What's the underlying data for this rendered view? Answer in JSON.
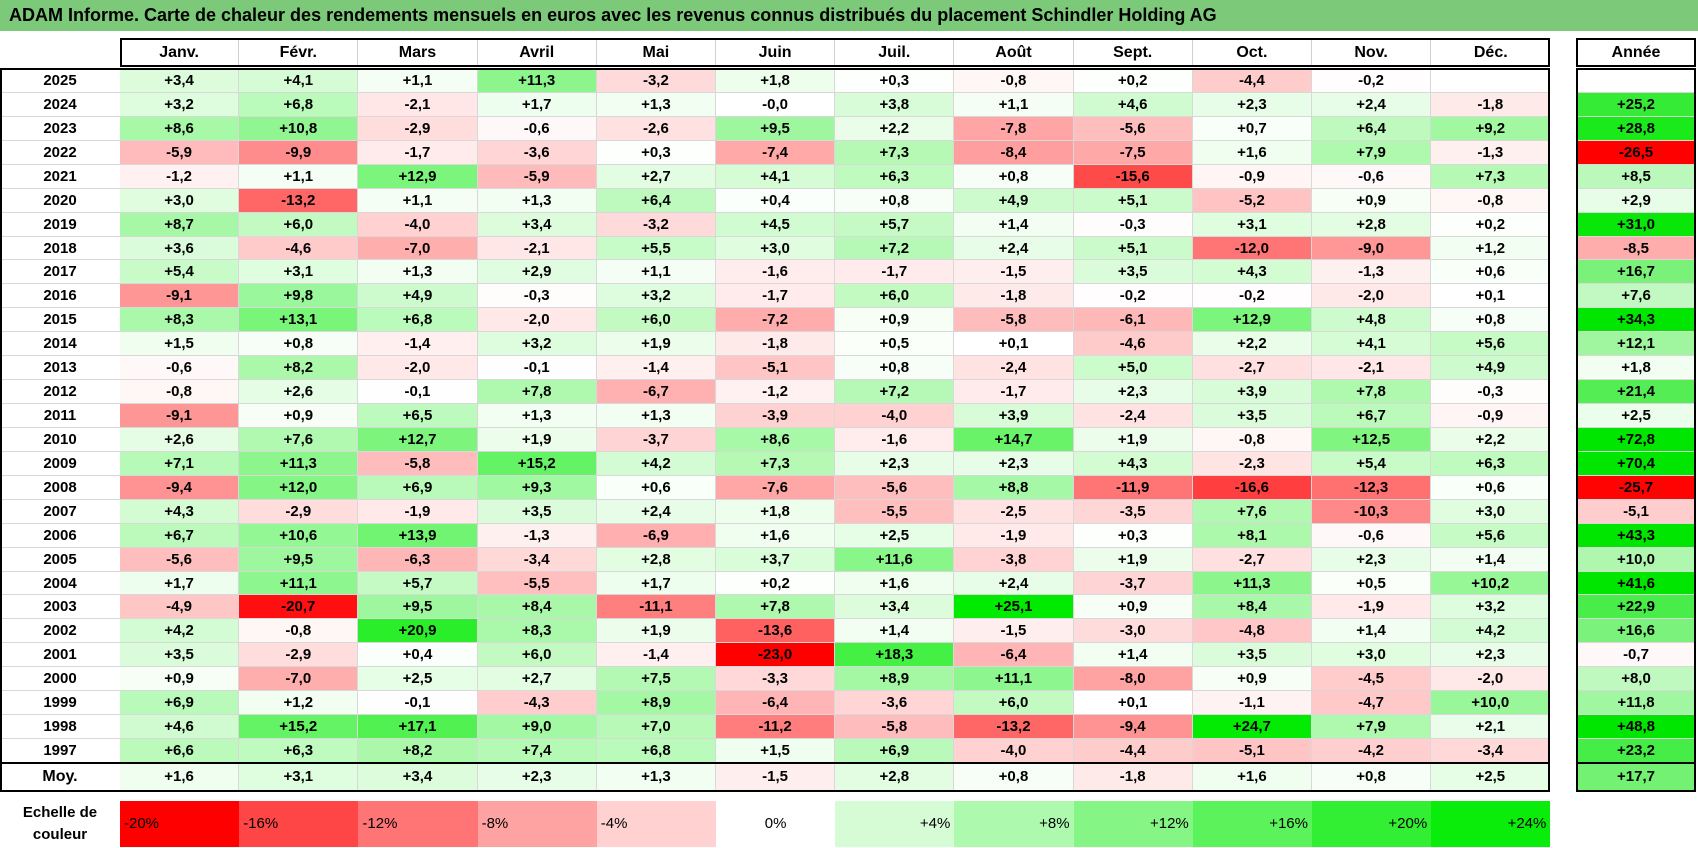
{
  "title": "ADAM Informe. Carte de chaleur des rendements mensuels en euros avec les revenus connus distribués du placement Schindler Holding AG",
  "colors": {
    "title_bg": "#7dc97a",
    "negative_max": "#ff0000",
    "positive_max": "#00e600",
    "neutral": "#ffffff"
  },
  "chart_data": {
    "type": "heatmap",
    "months": [
      "Janv.",
      "Févr.",
      "Mars",
      "Avril",
      "Mai",
      "Juin",
      "Juil.",
      "Août",
      "Sept.",
      "Oct.",
      "Nov.",
      "Déc."
    ],
    "year_header": "Année",
    "rows": [
      {
        "year": "2025",
        "values": [
          "+3,4",
          "+4,1",
          "+1,1",
          "+11,3",
          "-3,2",
          "+1,8",
          "+0,3",
          "-0,8",
          "+0,2",
          "-4,4",
          "-0,2",
          ""
        ],
        "annual": ""
      },
      {
        "year": "2024",
        "values": [
          "+3,2",
          "+6,8",
          "-2,1",
          "+1,7",
          "+1,3",
          "-0,0",
          "+3,8",
          "+1,1",
          "+4,6",
          "+2,3",
          "+2,4",
          "-1,8"
        ],
        "annual": "+25,2"
      },
      {
        "year": "2023",
        "values": [
          "+8,6",
          "+10,8",
          "-2,9",
          "-0,6",
          "-2,6",
          "+9,5",
          "+2,2",
          "-7,8",
          "-5,6",
          "+0,7",
          "+6,4",
          "+9,2"
        ],
        "annual": "+28,8"
      },
      {
        "year": "2022",
        "values": [
          "-5,9",
          "-9,9",
          "-1,7",
          "-3,6",
          "+0,3",
          "-7,4",
          "+7,3",
          "-8,4",
          "-7,5",
          "+1,6",
          "+7,9",
          "-1,3"
        ],
        "annual": "-26,5"
      },
      {
        "year": "2021",
        "values": [
          "-1,2",
          "+1,1",
          "+12,9",
          "-5,9",
          "+2,7",
          "+4,1",
          "+6,3",
          "+0,8",
          "-15,6",
          "-0,9",
          "-0,6",
          "+7,3"
        ],
        "annual": "+8,5"
      },
      {
        "year": "2020",
        "values": [
          "+3,0",
          "-13,2",
          "+1,1",
          "+1,3",
          "+6,4",
          "+0,4",
          "+0,8",
          "+4,9",
          "+5,1",
          "-5,2",
          "+0,9",
          "-0,8"
        ],
        "annual": "+2,9"
      },
      {
        "year": "2019",
        "values": [
          "+8,7",
          "+6,0",
          "-4,0",
          "+3,4",
          "-3,2",
          "+4,5",
          "+5,7",
          "+1,4",
          "-0,3",
          "+3,1",
          "+2,8",
          "+0,2"
        ],
        "annual": "+31,0"
      },
      {
        "year": "2018",
        "values": [
          "+3,6",
          "-4,6",
          "-7,0",
          "-2,1",
          "+5,5",
          "+3,0",
          "+7,2",
          "+2,4",
          "+5,1",
          "-12,0",
          "-9,0",
          "+1,2"
        ],
        "annual": "-8,5"
      },
      {
        "year": "2017",
        "values": [
          "+5,4",
          "+3,1",
          "+1,3",
          "+2,9",
          "+1,1",
          "-1,6",
          "-1,7",
          "-1,5",
          "+3,5",
          "+4,3",
          "-1,3",
          "+0,6"
        ],
        "annual": "+16,7"
      },
      {
        "year": "2016",
        "values": [
          "-9,1",
          "+9,8",
          "+4,9",
          "-0,3",
          "+3,2",
          "-1,7",
          "+6,0",
          "-1,8",
          "-0,2",
          "-0,2",
          "-2,0",
          "+0,1"
        ],
        "annual": "+7,6"
      },
      {
        "year": "2015",
        "values": [
          "+8,3",
          "+13,1",
          "+6,8",
          "-2,0",
          "+6,0",
          "-7,2",
          "+0,9",
          "-5,8",
          "-6,1",
          "+12,9",
          "+4,8",
          "+0,8"
        ],
        "annual": "+34,3"
      },
      {
        "year": "2014",
        "values": [
          "+1,5",
          "+0,8",
          "-1,4",
          "+3,2",
          "+1,9",
          "-1,8",
          "+0,5",
          "+0,1",
          "-4,6",
          "+2,2",
          "+4,1",
          "+5,6"
        ],
        "annual": "+12,1"
      },
      {
        "year": "2013",
        "values": [
          "-0,6",
          "+8,2",
          "-2,0",
          "-0,1",
          "-1,4",
          "-5,1",
          "+0,8",
          "-2,4",
          "+5,0",
          "-2,7",
          "-2,1",
          "+4,9"
        ],
        "annual": "+1,8"
      },
      {
        "year": "2012",
        "values": [
          "-0,8",
          "+2,6",
          "-0,1",
          "+7,8",
          "-6,7",
          "-1,2",
          "+7,2",
          "-1,7",
          "+2,3",
          "+3,9",
          "+7,8",
          "-0,3"
        ],
        "annual": "+21,4"
      },
      {
        "year": "2011",
        "values": [
          "-9,1",
          "+0,9",
          "+6,5",
          "+1,3",
          "+1,3",
          "-3,9",
          "-4,0",
          "+3,9",
          "-2,4",
          "+3,5",
          "+6,7",
          "-0,9"
        ],
        "annual": "+2,5"
      },
      {
        "year": "2010",
        "values": [
          "+2,6",
          "+7,6",
          "+12,7",
          "+1,9",
          "-3,7",
          "+8,6",
          "-1,6",
          "+14,7",
          "+1,9",
          "-0,8",
          "+12,5",
          "+2,2"
        ],
        "annual": "+72,8"
      },
      {
        "year": "2009",
        "values": [
          "+7,1",
          "+11,3",
          "-5,8",
          "+15,2",
          "+4,2",
          "+7,3",
          "+2,3",
          "+2,3",
          "+4,3",
          "-2,3",
          "+5,4",
          "+6,3"
        ],
        "annual": "+70,4"
      },
      {
        "year": "2008",
        "values": [
          "-9,4",
          "+12,0",
          "+6,9",
          "+9,3",
          "+0,6",
          "-7,6",
          "-5,6",
          "+8,8",
          "-11,9",
          "-16,6",
          "-12,3",
          "+0,6"
        ],
        "annual": "-25,7"
      },
      {
        "year": "2007",
        "values": [
          "+4,3",
          "-2,9",
          "-1,9",
          "+3,5",
          "+2,4",
          "+1,8",
          "-5,5",
          "-2,5",
          "-3,5",
          "+7,6",
          "-10,3",
          "+3,0"
        ],
        "annual": "-5,1"
      },
      {
        "year": "2006",
        "values": [
          "+6,7",
          "+10,6",
          "+13,9",
          "-1,3",
          "-6,9",
          "+1,6",
          "+2,5",
          "-1,9",
          "+0,3",
          "+8,1",
          "-0,6",
          "+5,6"
        ],
        "annual": "+43,3"
      },
      {
        "year": "2005",
        "values": [
          "-5,6",
          "+9,5",
          "-6,3",
          "-3,4",
          "+2,8",
          "+3,7",
          "+11,6",
          "-3,8",
          "+1,9",
          "-2,7",
          "+2,3",
          "+1,4"
        ],
        "annual": "+10,0"
      },
      {
        "year": "2004",
        "values": [
          "+1,7",
          "+11,1",
          "+5,7",
          "-5,5",
          "+1,7",
          "+0,2",
          "+1,6",
          "+2,4",
          "-3,7",
          "+11,3",
          "+0,5",
          "+10,2"
        ],
        "annual": "+41,6"
      },
      {
        "year": "2003",
        "values": [
          "-4,9",
          "-20,7",
          "+9,5",
          "+8,4",
          "-11,1",
          "+7,8",
          "+3,4",
          "+25,1",
          "+0,9",
          "+8,4",
          "-1,9",
          "+3,2"
        ],
        "annual": "+22,9"
      },
      {
        "year": "2002",
        "values": [
          "+4,2",
          "-0,8",
          "+20,9",
          "+8,3",
          "+1,9",
          "-13,6",
          "+1,4",
          "-1,5",
          "-3,0",
          "-4,8",
          "+1,4",
          "+4,2"
        ],
        "annual": "+16,6"
      },
      {
        "year": "2001",
        "values": [
          "+3,5",
          "-2,9",
          "+0,4",
          "+6,0",
          "-1,4",
          "-23,0",
          "+18,3",
          "-6,4",
          "+1,4",
          "+3,5",
          "+3,0",
          "+2,3"
        ],
        "annual": "-0,7"
      },
      {
        "year": "2000",
        "values": [
          "+0,9",
          "-7,0",
          "+2,5",
          "+2,7",
          "+7,5",
          "-3,3",
          "+8,9",
          "+11,1",
          "-8,0",
          "+0,9",
          "-4,5",
          "-2,0"
        ],
        "annual": "+8,0"
      },
      {
        "year": "1999",
        "values": [
          "+6,9",
          "+1,2",
          "-0,1",
          "-4,3",
          "+8,9",
          "-6,4",
          "-3,6",
          "+6,0",
          "+0,1",
          "-1,1",
          "-4,7",
          "+10,0"
        ],
        "annual": "+11,8"
      },
      {
        "year": "1998",
        "values": [
          "+4,6",
          "+15,2",
          "+17,1",
          "+9,0",
          "+7,0",
          "-11,2",
          "-5,8",
          "-13,2",
          "-9,4",
          "+24,7",
          "+7,9",
          "+2,1"
        ],
        "annual": "+48,8"
      },
      {
        "year": "1997",
        "values": [
          "+6,6",
          "+6,3",
          "+8,2",
          "+7,4",
          "+6,8",
          "+1,5",
          "+6,9",
          "-4,0",
          "-4,4",
          "-5,1",
          "-4,2",
          "-3,4"
        ],
        "annual": "+23,2"
      }
    ],
    "average": {
      "label": "Moy.",
      "values": [
        "+1,6",
        "+3,1",
        "+3,4",
        "+2,3",
        "+1,3",
        "-1,5",
        "+2,8",
        "+0,8",
        "-1,8",
        "+1,6",
        "+0,8",
        "+2,5"
      ],
      "annual": "+17,7"
    },
    "scale": {
      "label": "Echelle de couleur",
      "steps": [
        {
          "text": "-20%",
          "value": -20
        },
        {
          "text": "-16%",
          "value": -16
        },
        {
          "text": "-12%",
          "value": -12
        },
        {
          "text": "-8%",
          "value": -8
        },
        {
          "text": "-4%",
          "value": -4
        },
        {
          "text": "0%",
          "value": 0
        },
        {
          "text": "+4%",
          "value": 4
        },
        {
          "text": "+8%",
          "value": 8
        },
        {
          "text": "+12%",
          "value": 12
        },
        {
          "text": "+16%",
          "value": 16
        },
        {
          "text": "+20%",
          "value": 20
        },
        {
          "text": "+24%",
          "value": 24
        }
      ]
    }
  }
}
